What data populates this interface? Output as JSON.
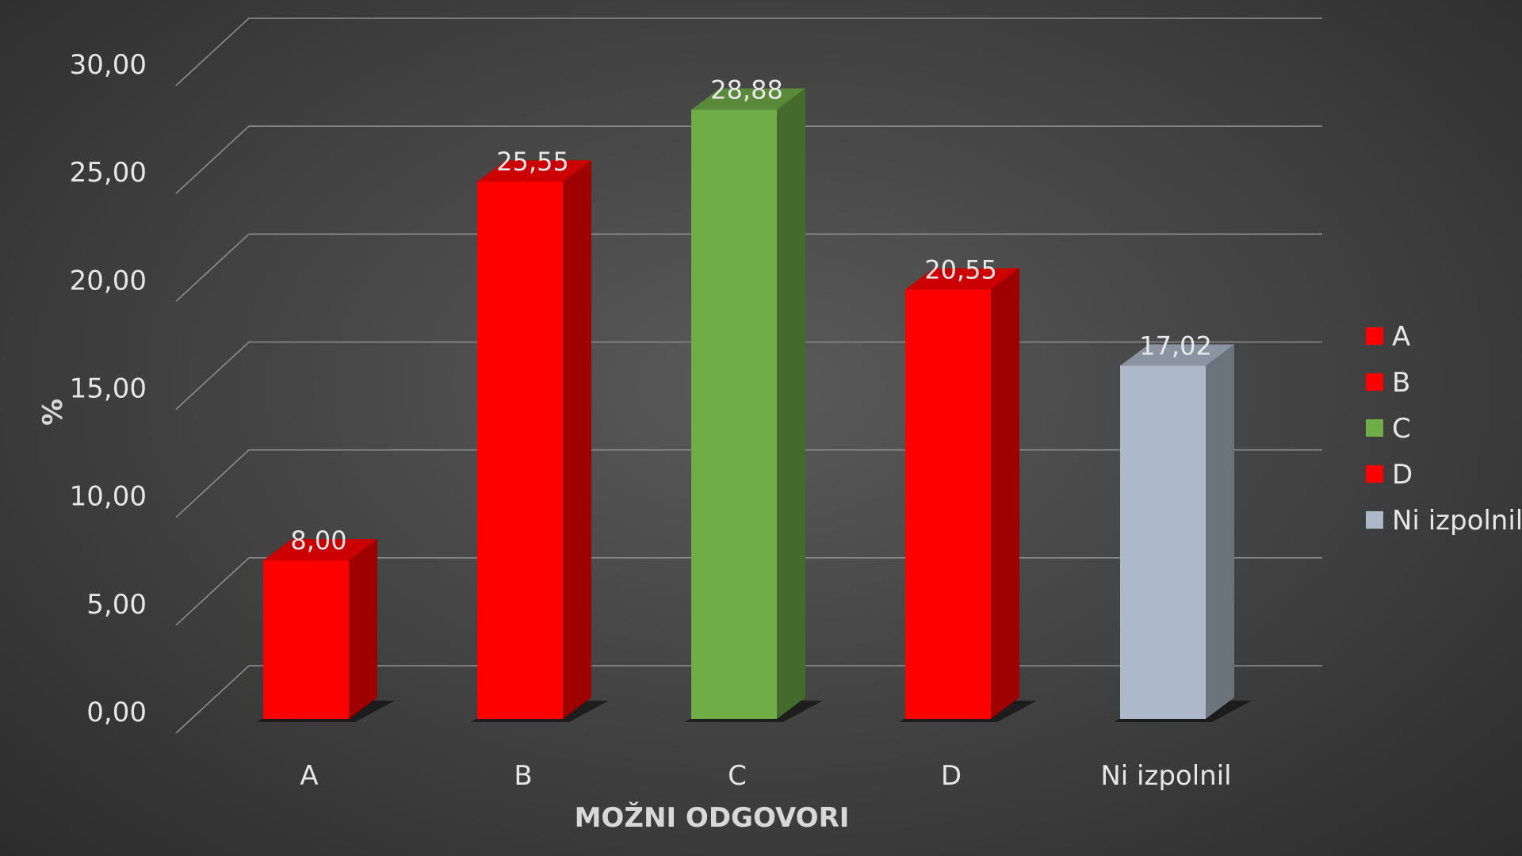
{
  "chart_data": {
    "type": "bar",
    "style": "3d-column",
    "categories": [
      "A",
      "B",
      "C",
      "D",
      "Ni izpolnil"
    ],
    "values": [
      8.0,
      25.55,
      28.88,
      20.55,
      17.02
    ],
    "value_labels": [
      "8,00",
      "25,55",
      "28,88",
      "20,55",
      "17,02"
    ],
    "colors": [
      "#ff0000",
      "#ff0000",
      "#70ad47",
      "#ff0000",
      "#adb9ca"
    ],
    "xlabel": "MOŽNI ODGOVORI",
    "ylabel": "%",
    "ylim": [
      0,
      30
    ],
    "yticks": [
      0,
      5,
      10,
      15,
      20,
      25,
      30
    ],
    "ytick_labels": [
      "0,00",
      "5,00",
      "10,00",
      "15,00",
      "20,00",
      "25,00",
      "30,00"
    ],
    "grid": true,
    "legend": {
      "placement": "right",
      "entries": [
        {
          "label": "A",
          "color": "#ff0000"
        },
        {
          "label": "B",
          "color": "#ff0000"
        },
        {
          "label": "C",
          "color": "#70ad47"
        },
        {
          "label": "D",
          "color": "#ff0000"
        },
        {
          "label": "Ni izpolnil",
          "color": "#adb9ca"
        }
      ]
    }
  }
}
